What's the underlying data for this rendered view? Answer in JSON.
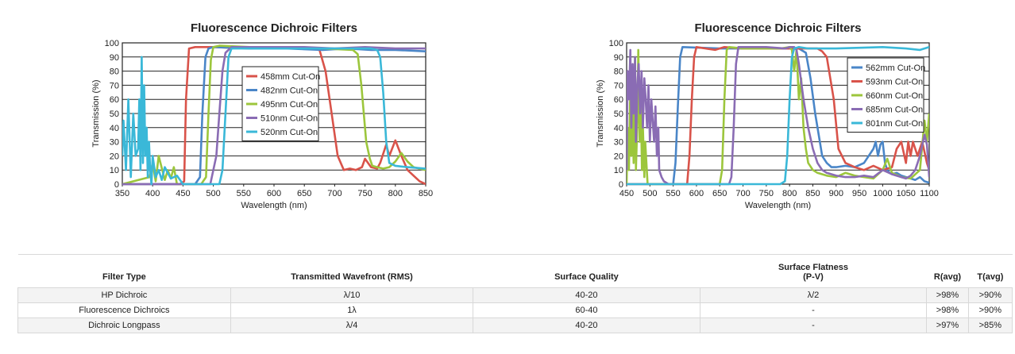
{
  "colors": {
    "red": "#d9534a",
    "blue": "#4a86c8",
    "green": "#9cc63c",
    "purple": "#8a6cb4",
    "cyan": "#3ab8d8"
  },
  "chart_data": [
    {
      "type": "line",
      "title": "Fluorescence Dichroic Filters",
      "xlabel": "Wavelength (nm)",
      "ylabel": "Transmission (%)",
      "xlim": [
        350,
        850
      ],
      "ylim": [
        0,
        100
      ],
      "xticks": [
        350,
        400,
        450,
        500,
        550,
        600,
        650,
        700,
        750,
        800,
        850
      ],
      "yticks": [
        0,
        10,
        20,
        30,
        40,
        50,
        60,
        70,
        80,
        90,
        100
      ],
      "legend_position": "center",
      "series": [
        {
          "name": "458mm Cut-On",
          "color": "red",
          "x": [
            350,
            380,
            420,
            445,
            452,
            455,
            460,
            470,
            500,
            560,
            600,
            640,
            665,
            675,
            685,
            695,
            705,
            715,
            725,
            735,
            745,
            750,
            760,
            770,
            775,
            785,
            790,
            800,
            810,
            820,
            830,
            840,
            845,
            850
          ],
          "y": [
            0,
            0,
            0,
            0,
            2,
            60,
            96,
            97,
            97,
            96,
            97,
            97,
            96,
            95,
            80,
            50,
            20,
            10,
            11,
            10,
            12,
            18,
            12,
            11,
            15,
            28,
            20,
            31,
            20,
            10,
            6,
            2,
            1,
            0
          ]
        },
        {
          "name": "482nm Cut-On",
          "color": "blue",
          "x": [
            350,
            400,
            470,
            478,
            482,
            487,
            492,
            500,
            560,
            620,
            680,
            720,
            760,
            800,
            850
          ],
          "y": [
            0,
            0,
            0,
            5,
            50,
            90,
            96,
            97,
            96,
            96,
            95,
            96,
            95,
            95,
            94
          ]
        },
        {
          "name": "495nm Cut-On",
          "color": "green",
          "x": [
            350,
            395,
            400,
            405,
            410,
            420,
            425,
            430,
            435,
            440,
            450,
            470,
            480,
            488,
            492,
            496,
            500,
            510,
            560,
            620,
            680,
            730,
            738,
            744,
            752,
            758,
            762,
            770,
            780,
            790,
            800,
            810,
            820,
            830,
            850
          ],
          "y": [
            0,
            5,
            15,
            2,
            20,
            3,
            10,
            4,
            12,
            0,
            0,
            0,
            0,
            5,
            50,
            88,
            97,
            98,
            97,
            97,
            96,
            95,
            92,
            70,
            30,
            18,
            13,
            12,
            11,
            12,
            16,
            22,
            16,
            12,
            10
          ]
        },
        {
          "name": "510nm Cut-On",
          "color": "purple",
          "x": [
            350,
            430,
            495,
            505,
            510,
            515,
            520,
            530,
            560,
            600,
            650,
            700,
            750,
            800,
            850
          ],
          "y": [
            0,
            0,
            0,
            20,
            50,
            80,
            93,
            97,
            97,
            97,
            97,
            96,
            97,
            96,
            96
          ]
        },
        {
          "name": "520nm Cut-On",
          "color": "cyan",
          "x": [
            350,
            352,
            356,
            360,
            364,
            368,
            372,
            376,
            378,
            380,
            382,
            384,
            386,
            388,
            390,
            392,
            394,
            396,
            398,
            400,
            405,
            410,
            415,
            420,
            430,
            440,
            450,
            460,
            470,
            480,
            500,
            510,
            515,
            520,
            525,
            530,
            560,
            600,
            650,
            700,
            750,
            760,
            770,
            775,
            780,
            785,
            790,
            800,
            820,
            850
          ],
          "y": [
            20,
            45,
            10,
            60,
            5,
            50,
            20,
            25,
            60,
            10,
            90,
            15,
            70,
            20,
            40,
            5,
            30,
            10,
            0,
            20,
            5,
            10,
            3,
            12,
            4,
            6,
            0,
            0,
            0,
            0,
            0,
            0,
            10,
            50,
            90,
            96,
            96,
            96,
            96,
            96,
            96,
            96,
            95,
            90,
            65,
            30,
            15,
            13,
            12,
            11
          ]
        }
      ]
    },
    {
      "type": "line",
      "title": "Fluorescence Dichroic Filters",
      "xlabel": "Wavelength (nm)",
      "ylabel": "Transmission (%)",
      "xlim": [
        450,
        1100
      ],
      "ylim": [
        0,
        100
      ],
      "xticks": [
        450,
        500,
        550,
        600,
        650,
        700,
        750,
        800,
        850,
        900,
        950,
        1000,
        1050,
        1100
      ],
      "yticks": [
        0,
        10,
        20,
        30,
        40,
        50,
        60,
        70,
        80,
        90,
        100
      ],
      "legend_position": "top-right",
      "series": [
        {
          "name": "562mm Cut-On",
          "color": "blue",
          "x": [
            450,
            500,
            540,
            550,
            555,
            560,
            565,
            570,
            650,
            750,
            820,
            835,
            845,
            855,
            865,
            870,
            880,
            890,
            900,
            920,
            940,
            960,
            980,
            985,
            990,
            995,
            1000,
            1005,
            1010,
            1015,
            1020,
            1030,
            1040,
            1050,
            1060,
            1070,
            1080,
            1090,
            1100
          ],
          "y": [
            0,
            0,
            0,
            0,
            15,
            55,
            90,
            97,
            96,
            96,
            96,
            93,
            75,
            50,
            30,
            20,
            15,
            12,
            12,
            13,
            12,
            15,
            25,
            30,
            20,
            28,
            30,
            15,
            10,
            8,
            7,
            8,
            6,
            5,
            4,
            3,
            5,
            2,
            1
          ]
        },
        {
          "name": "593nm Cut-On",
          "color": "red",
          "x": [
            450,
            550,
            580,
            585,
            590,
            595,
            600,
            620,
            640,
            660,
            700,
            800,
            860,
            870,
            880,
            895,
            905,
            920,
            940,
            960,
            980,
            1000,
            1020,
            1030,
            1040,
            1050,
            1055,
            1060,
            1065,
            1075,
            1085,
            1095,
            1100
          ],
          "y": [
            0,
            0,
            0,
            20,
            60,
            90,
            97,
            96,
            95,
            97,
            96,
            96,
            96,
            94,
            90,
            60,
            25,
            15,
            12,
            10,
            13,
            10,
            12,
            25,
            30,
            15,
            30,
            20,
            30,
            20,
            30,
            15,
            10
          ]
        },
        {
          "name": "660nm Cut-On",
          "color": "green",
          "x": [
            450,
            452,
            455,
            458,
            460,
            463,
            465,
            468,
            470,
            473,
            475,
            478,
            480,
            483,
            485,
            488,
            490,
            495,
            500,
            510,
            520,
            640,
            650,
            655,
            660,
            665,
            670,
            700,
            780,
            800,
            805,
            810,
            815,
            820,
            825,
            830,
            835,
            840,
            850,
            860,
            880,
            900,
            920,
            940,
            960,
            980,
            1000,
            1010,
            1020,
            1040,
            1060,
            1080,
            1090,
            1095,
            1100
          ],
          "y": [
            0,
            40,
            10,
            70,
            20,
            50,
            15,
            90,
            10,
            45,
            95,
            30,
            70,
            10,
            40,
            5,
            30,
            0,
            0,
            0,
            0,
            0,
            0,
            10,
            60,
            95,
            97,
            96,
            96,
            97,
            95,
            80,
            95,
            60,
            75,
            40,
            25,
            15,
            10,
            8,
            6,
            5,
            8,
            6,
            5,
            4,
            10,
            18,
            8,
            5,
            4,
            10,
            45,
            30,
            50
          ]
        },
        {
          "name": "685nm Cut-On",
          "color": "purple",
          "x": [
            450,
            452,
            455,
            458,
            460,
            463,
            465,
            468,
            470,
            473,
            476,
            479,
            482,
            485,
            488,
            491,
            494,
            497,
            500,
            503,
            506,
            509,
            512,
            515,
            518,
            520,
            525,
            530,
            540,
            550,
            660,
            670,
            675,
            680,
            685,
            690,
            700,
            750,
            790,
            800,
            810,
            815,
            820,
            830,
            840,
            850,
            860,
            870,
            880,
            900,
            920,
            940,
            960,
            980,
            1000,
            1020,
            1040,
            1050,
            1060,
            1070,
            1080,
            1090,
            1095,
            1100
          ],
          "y": [
            10,
            80,
            60,
            95,
            40,
            85,
            50,
            90,
            30,
            70,
            85,
            50,
            80,
            40,
            75,
            60,
            40,
            70,
            30,
            60,
            45,
            30,
            55,
            20,
            40,
            10,
            5,
            2,
            0,
            0,
            0,
            0,
            5,
            40,
            85,
            97,
            97,
            97,
            96,
            97,
            97,
            95,
            85,
            60,
            40,
            25,
            15,
            10,
            8,
            6,
            5,
            5,
            6,
            5,
            10,
            7,
            5,
            4,
            6,
            10,
            20,
            35,
            28,
            5
          ]
        },
        {
          "name": "801nm Cut-On",
          "color": "cyan",
          "x": [
            450,
            460,
            470,
            480,
            490,
            500,
            510,
            520,
            530,
            540,
            550,
            600,
            700,
            760,
            780,
            790,
            795,
            800,
            805,
            810,
            820,
            840,
            900,
            1000,
            1050,
            1080,
            1100
          ],
          "y": [
            0,
            0,
            0,
            0,
            0,
            0,
            0,
            0,
            0,
            0,
            0,
            0,
            0,
            0,
            0,
            2,
            20,
            60,
            90,
            96,
            97,
            96,
            96,
            97,
            96,
            95,
            97
          ]
        }
      ]
    }
  ],
  "table": {
    "headers": {
      "filter_type": "Filter Type",
      "wavefront": "Transmitted Wavefront (RMS)",
      "surface_quality": "Surface Quality",
      "flatness_line1": "Surface Flatness",
      "flatness_line2": "(P-V)",
      "ravg": "R(avg)",
      "tavg": "T(avg)"
    },
    "rows": [
      {
        "type": "HP Dichroic",
        "wavefront": "λ/10",
        "quality": "40-20",
        "flatness": "λ/2",
        "ravg": ">98%",
        "tavg": ">90%"
      },
      {
        "type": "Fluorescence Dichroics",
        "wavefront": "1λ",
        "quality": "60-40",
        "flatness": "-",
        "ravg": ">98%",
        "tavg": ">90%"
      },
      {
        "type": "Dichroic Longpass",
        "wavefront": "λ/4",
        "quality": "40-20",
        "flatness": "-",
        "ravg": ">97%",
        "tavg": ">85%"
      }
    ]
  }
}
